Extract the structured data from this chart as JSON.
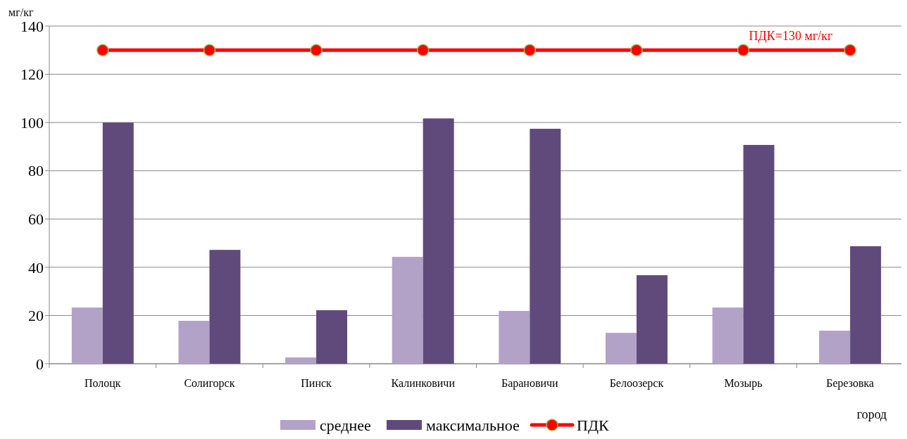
{
  "chart_data": {
    "type": "bar",
    "ylabel": "мг/кг",
    "xlabel": "город",
    "categories": [
      "Полоцк",
      "Солигорск",
      "Пинск",
      "Калинковичи",
      "Барановичи",
      "Белоозерск",
      "Мозырь",
      "Березовка"
    ],
    "series": [
      {
        "name": "среднее",
        "color": "#b3a2c7",
        "values": [
          23.3,
          17.8,
          2.6,
          44.3,
          21.9,
          12.8,
          23.3,
          13.7
        ]
      },
      {
        "name": "максимальное",
        "color": "#604a7b",
        "values": [
          100,
          47.2,
          22.2,
          101.7,
          97.4,
          36.7,
          90.7,
          48.7
        ]
      },
      {
        "name": "ПДК",
        "type": "line",
        "color": "#ff0000",
        "values": [
          130,
          130,
          130,
          130,
          130,
          130,
          130,
          130
        ]
      }
    ],
    "ylim": [
      0,
      140
    ],
    "yticks": [
      0,
      20,
      40,
      60,
      80,
      100,
      120,
      140
    ],
    "grid": "y",
    "legend": "bottom",
    "marker": "circle",
    "annotations": [
      "ПДК=130 мг/кг"
    ]
  }
}
